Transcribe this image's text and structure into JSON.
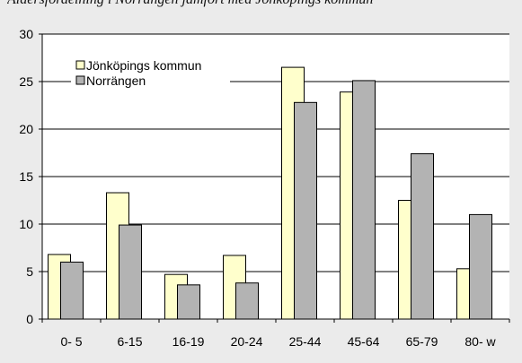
{
  "caption_text": "Åldersfördelning i Norrängen jämfört med Jönköpings kommun",
  "chart_data": {
    "type": "bar",
    "title": "",
    "xlabel": "",
    "ylabel": "",
    "ylim": [
      0,
      30
    ],
    "yticks": [
      0,
      5,
      10,
      15,
      20,
      25,
      30
    ],
    "grid": true,
    "legend_position": "top-left",
    "categories": [
      "0- 5",
      "6-15",
      "16-19",
      "20-24",
      "25-44",
      "45-64",
      "65-79",
      "80- w"
    ],
    "series": [
      {
        "name": "Jönköpings kommun",
        "color": "#ffffcc",
        "values": [
          6.8,
          13.3,
          4.7,
          6.7,
          26.5,
          23.9,
          12.5,
          5.3
        ]
      },
      {
        "name": "Norrängen",
        "color": "#b3b3b3",
        "values": [
          6.0,
          9.9,
          3.6,
          3.8,
          22.8,
          25.1,
          17.4,
          11.0
        ]
      }
    ]
  }
}
